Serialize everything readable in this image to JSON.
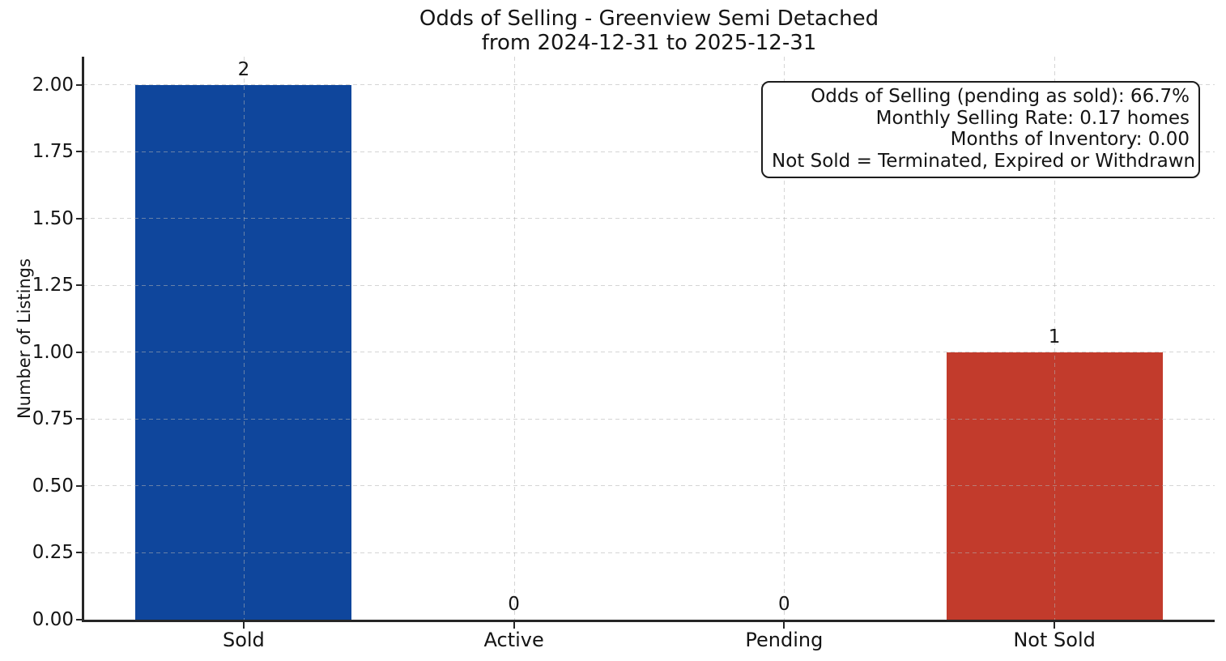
{
  "chart_data": {
    "type": "bar",
    "title": "Odds of Selling - Greenview Semi Detached",
    "subtitle": "from 2024-12-31 to 2025-12-31",
    "ylabel": "Number of Listings",
    "xlabel": "",
    "categories": [
      "Sold",
      "Active",
      "Pending",
      "Not Sold"
    ],
    "values": [
      2,
      0,
      0,
      1
    ],
    "value_labels": [
      "2",
      "0",
      "0",
      "1"
    ],
    "bar_colors": [
      "#0f469c",
      "#0f469c",
      "#0f469c",
      "#c23b2c"
    ],
    "ytick_labels": [
      "0.00",
      "0.25",
      "0.50",
      "0.75",
      "1.00",
      "1.25",
      "1.50",
      "1.75",
      "2.00"
    ],
    "ytick_values": [
      0,
      0.25,
      0.5,
      0.75,
      1,
      1.25,
      1.5,
      1.75,
      2
    ],
    "ylim": [
      0,
      2.105
    ],
    "xlim": [
      -0.593,
      3.593
    ],
    "bar_width": 0.8,
    "grid": {
      "visible": true,
      "style": "dashed"
    },
    "legend": null,
    "annotation": [
      "Odds of Selling (pending as sold): 66.7%",
      "Monthly Selling Rate: 0.17 homes",
      "Months of Inventory: 0.00",
      "Not Sold = Terminated, Expired or Withdrawn"
    ]
  }
}
